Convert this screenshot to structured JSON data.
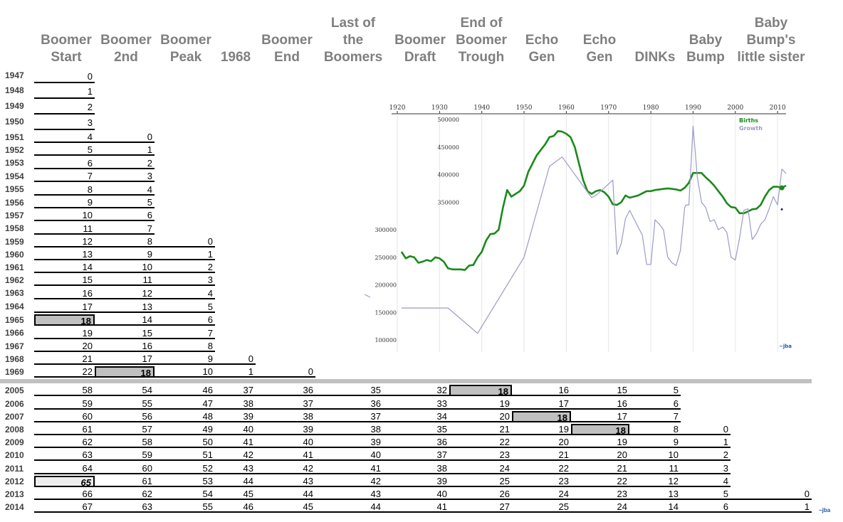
{
  "columns": [
    {
      "header": "Boomer\nStart"
    },
    {
      "header": "Boomer\n2nd"
    },
    {
      "header": "Boomer\nPeak"
    },
    {
      "header": "1968"
    },
    {
      "header": "Boomer\nEnd"
    },
    {
      "header": "Last of\nthe\nBoomers"
    },
    {
      "header": "Boomer\nDraft"
    },
    {
      "header": "End of\nBoomer\nTrough"
    },
    {
      "header": "Echo\nGen"
    },
    {
      "header": "Echo\nGen"
    },
    {
      "header": "DINKs"
    },
    {
      "header": "Baby\nBump"
    },
    {
      "header": "Baby\nBump's\nlittle sister"
    }
  ],
  "top_years": [
    "1947",
    "1948",
    "1949",
    "1950",
    "1951",
    "1952",
    "1953",
    "1954",
    "1955",
    "1956",
    "1957",
    "1958",
    "1959",
    "1960",
    "1961",
    "1962",
    "1963",
    "1964",
    "1965",
    "1966",
    "1967",
    "1968",
    "1969"
  ],
  "top_cells": [
    [
      "0"
    ],
    [
      "1"
    ],
    [
      "2"
    ],
    [
      "3"
    ],
    [
      "4",
      "0"
    ],
    [
      "5",
      "1"
    ],
    [
      "6",
      "2"
    ],
    [
      "7",
      "3"
    ],
    [
      "8",
      "4"
    ],
    [
      "9",
      "5"
    ],
    [
      "10",
      "6"
    ],
    [
      "11",
      "7"
    ],
    [
      "12",
      "8",
      "0"
    ],
    [
      "13",
      "9",
      "1"
    ],
    [
      "14",
      "10",
      "2"
    ],
    [
      "15",
      "11",
      "3"
    ],
    [
      "16",
      "12",
      "4"
    ],
    [
      "17",
      "13",
      "5"
    ],
    [
      "18",
      "14",
      "6"
    ],
    [
      "19",
      "15",
      "7"
    ],
    [
      "20",
      "16",
      "8"
    ],
    [
      "21",
      "17",
      "9",
      "0"
    ],
    [
      "22",
      "18",
      "10",
      "1",
      "0"
    ]
  ],
  "bottom_years": [
    "2005",
    "2006",
    "2007",
    "2008",
    "2009",
    "2010",
    "2011",
    "2012",
    "2013",
    "2014"
  ],
  "bottom_cells": [
    [
      "58",
      "54",
      "46",
      "37",
      "36",
      "35",
      "32",
      "18",
      "16",
      "15",
      "5"
    ],
    [
      "59",
      "55",
      "47",
      "38",
      "37",
      "36",
      "33",
      "19",
      "17",
      "16",
      "6"
    ],
    [
      "60",
      "56",
      "48",
      "39",
      "38",
      "37",
      "34",
      "20",
      "18",
      "17",
      "7"
    ],
    [
      "61",
      "57",
      "49",
      "40",
      "39",
      "38",
      "35",
      "21",
      "19",
      "18",
      "8",
      "0"
    ],
    [
      "62",
      "58",
      "50",
      "41",
      "40",
      "39",
      "36",
      "22",
      "20",
      "19",
      "9",
      "1"
    ],
    [
      "63",
      "59",
      "51",
      "42",
      "41",
      "40",
      "37",
      "23",
      "21",
      "20",
      "10",
      "2"
    ],
    [
      "64",
      "60",
      "52",
      "43",
      "42",
      "41",
      "38",
      "24",
      "22",
      "21",
      "11",
      "3"
    ],
    [
      "65",
      "61",
      "53",
      "44",
      "43",
      "42",
      "39",
      "25",
      "23",
      "22",
      "12",
      "4"
    ],
    [
      "66",
      "62",
      "54",
      "45",
      "44",
      "43",
      "40",
      "26",
      "24",
      "23",
      "13",
      "5",
      "0"
    ],
    [
      "67",
      "63",
      "55",
      "46",
      "45",
      "44",
      "41",
      "27",
      "25",
      "24",
      "14",
      "6",
      "1"
    ]
  ],
  "chart_data": {
    "type": "line",
    "x_ticks": [
      1920,
      1930,
      1940,
      1950,
      1960,
      1970,
      1980,
      1990,
      2000,
      2010
    ],
    "y_ticks": [
      100000,
      150000,
      200000,
      250000,
      300000,
      350000,
      400000,
      450000,
      500000
    ],
    "xlim": [
      1920,
      2012
    ],
    "ylim": [
      80000,
      520000
    ],
    "legend": "top-right",
    "series": [
      {
        "name": "Births",
        "color": "#1a8a1a",
        "x": [
          1921,
          1922,
          1923,
          1924,
          1925,
          1926,
          1927,
          1928,
          1929,
          1930,
          1931,
          1932,
          1933,
          1934,
          1935,
          1936,
          1937,
          1938,
          1939,
          1940,
          1941,
          1942,
          1943,
          1944,
          1945,
          1946,
          1947,
          1948,
          1949,
          1950,
          1951,
          1952,
          1953,
          1954,
          1955,
          1956,
          1957,
          1958,
          1959,
          1960,
          1961,
          1962,
          1963,
          1964,
          1965,
          1966,
          1967,
          1968,
          1969,
          1970,
          1971,
          1972,
          1973,
          1974,
          1975,
          1976,
          1977,
          1978,
          1979,
          1980,
          1981,
          1982,
          1983,
          1984,
          1985,
          1986,
          1987,
          1988,
          1989,
          1990,
          1991,
          1992,
          1993,
          1994,
          1995,
          1996,
          1997,
          1998,
          1999,
          2000,
          2001,
          2002,
          2003,
          2004,
          2005,
          2006,
          2007,
          2008,
          2009,
          2010,
          2011,
          2012
        ],
        "y": [
          260000,
          248000,
          252000,
          250000,
          240000,
          242000,
          245000,
          243000,
          250000,
          248000,
          242000,
          230000,
          228000,
          228000,
          228000,
          227000,
          235000,
          236000,
          250000,
          260000,
          280000,
          292000,
          293000,
          300000,
          340000,
          372000,
          360000,
          365000,
          370000,
          380000,
          405000,
          420000,
          435000,
          445000,
          455000,
          468000,
          470000,
          479000,
          478000,
          474000,
          468000,
          450000,
          420000,
          390000,
          370000,
          365000,
          370000,
          372000,
          368000,
          360000,
          346000,
          345000,
          350000,
          362000,
          358000,
          360000,
          362000,
          366000,
          370000,
          370000,
          372000,
          373000,
          374000,
          375000,
          374000,
          373000,
          371000,
          376000,
          385000,
          403000,
          403000,
          403000,
          395000,
          388000,
          380000,
          370000,
          360000,
          348000,
          341000,
          340000,
          330000,
          330000,
          333000,
          337000,
          338000,
          345000,
          360000,
          372000,
          378000,
          378000,
          376000,
          380000
        ]
      },
      {
        "name": "Growth",
        "color": "#9a9ac8",
        "x": [
          1921,
          1931,
          1932,
          1939,
          1950,
          1956,
          1959,
          1966,
          1967,
          1971,
          1972,
          1973,
          1974,
          1975,
          1978,
          1979,
          1980,
          1981,
          1982,
          1983,
          1984,
          1985,
          1986,
          1987,
          1988,
          1988.3,
          1989,
          1990,
          1991,
          1992,
          1993,
          1994,
          1995,
          1996,
          1997,
          1998,
          1999,
          2000,
          2001,
          2002,
          2003,
          2004,
          2005,
          2006,
          2007,
          2008,
          2009,
          2010,
          2011,
          2012
        ],
        "y": [
          158000,
          158000,
          158000,
          112000,
          250000,
          415000,
          432000,
          358000,
          362000,
          390000,
          255000,
          275000,
          320000,
          335000,
          290000,
          237000,
          237000,
          318000,
          310000,
          300000,
          250000,
          240000,
          235000,
          262000,
          340000,
          345000,
          345000,
          488000,
          395000,
          350000,
          340000,
          315000,
          318000,
          300000,
          305000,
          295000,
          250000,
          245000,
          285000,
          335000,
          338000,
          282000,
          293000,
          310000,
          318000,
          338000,
          360000,
          345000,
          410000,
          402000
        ]
      }
    ]
  },
  "chart_credit": "~jba",
  "page_credit": "~jba"
}
